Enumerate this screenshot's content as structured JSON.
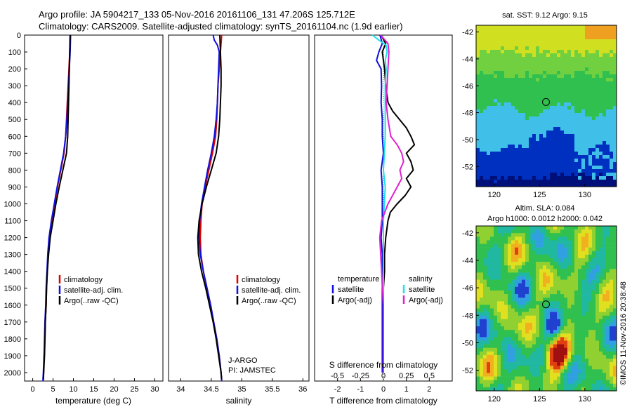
{
  "header": {
    "line1": "Argo profile: JA 5904217_133 05-Nov-2016 20161106_131 47.206S 125.712E",
    "line2": "Climatology: CARS2009. Satellite-adjusted climatology: synTS_20161104.nc (1.9d earlier)"
  },
  "panels": {
    "temperature": {
      "xlabel": "temperature (deg C)",
      "xticks": [
        0,
        5,
        10,
        15,
        20,
        25,
        30
      ],
      "xlim": [
        -2,
        32
      ],
      "legend": [
        "climatology",
        "satellite-adj. clim.",
        "Argo(..raw -QC)"
      ]
    },
    "salinity": {
      "xlabel": "salinity",
      "xticks": [
        34,
        34.5,
        35,
        35.5,
        36
      ],
      "xtick_labels": [
        "34",
        "34.5",
        "35",
        "35.5",
        "36"
      ],
      "xlim": [
        33.8,
        36.1
      ],
      "legend": [
        "climatology",
        "satellite-adj. clim.",
        "Argo(..raw -QC)"
      ],
      "note1": "J-ARGO",
      "note2": "PI: JAMSTEC"
    },
    "difference": {
      "xlabel": "T difference from climatology",
      "top_label": "S difference from climatology",
      "xticks": [
        -2,
        -1,
        0,
        1,
        2
      ],
      "xtick_labels": [
        "-2",
        "-1",
        "0",
        "1",
        "2"
      ],
      "top_ticks": [
        -0.5,
        -0.25,
        0,
        0.25,
        0.5
      ],
      "top_tick_labels": [
        "-0.5",
        "-0.25",
        "0",
        "0.25",
        "0.5"
      ],
      "xlim": [
        -3,
        3
      ],
      "legend_t_head": "temperature",
      "legend_s_head": "salinity",
      "legend_t": [
        "satellite",
        "Argo(-adj)"
      ],
      "legend_s": [
        "satellite",
        "Argo(-adj)"
      ]
    }
  },
  "depth_axis": {
    "ylim": [
      0,
      2050
    ],
    "ticks": [
      0,
      100,
      200,
      300,
      400,
      500,
      600,
      700,
      800,
      900,
      1000,
      1100,
      1200,
      1300,
      1400,
      1500,
      1600,
      1700,
      1800,
      1900,
      2000
    ]
  },
  "maps": {
    "sst": {
      "title": "sat. SST: 9.12 Argo: 9.15",
      "xticks": [
        120,
        125,
        130
      ],
      "yticks": [
        -42,
        -44,
        -46,
        -48,
        -50,
        -52
      ],
      "xlim": [
        118,
        133.5
      ],
      "ylim": [
        -53.5,
        -41.5
      ],
      "marker": [
        125.712,
        -47.206
      ]
    },
    "sla": {
      "title1": "Altim. SLA: 0.084",
      "title2": "Argo h1000: 0.0012 h2000: 0.042",
      "xticks": [
        120,
        125,
        130
      ],
      "yticks": [
        -42,
        -44,
        -46,
        -48,
        -50,
        -52
      ],
      "xlim": [
        118,
        133.5
      ],
      "ylim": [
        -53.5,
        -41.5
      ],
      "marker": [
        125.712,
        -47.206
      ]
    }
  },
  "watermark": "©IMOS 11-Nov-2016 20:38:48",
  "colors": {
    "climatology": "#e00000",
    "satellite": "#1010e0",
    "argo": "#000000",
    "sat_salinity": "#20e0e8",
    "argo_salinity": "#e020d0",
    "zero_line": "#00a000"
  },
  "chart_data": [
    {
      "type": "line",
      "title": "",
      "xlabel": "temperature (deg C)",
      "ylabel": "",
      "xlim": [
        -2,
        32
      ],
      "ylim": [
        2050,
        0
      ],
      "series": [
        {
          "name": "climatology",
          "depth": [
            0,
            100,
            200,
            300,
            400,
            500,
            600,
            700,
            800,
            900,
            1000,
            1100,
            1200,
            1300,
            1400,
            1500,
            1600,
            1700,
            1800,
            1900,
            2000,
            2050
          ],
          "values": [
            9.2,
            9.1,
            8.9,
            8.7,
            8.5,
            8.3,
            8.1,
            7.7,
            6.9,
            6.1,
            5.4,
            4.7,
            4.1,
            3.8,
            3.6,
            3.4,
            3.3,
            3.1,
            3.0,
            2.8,
            2.7,
            2.6
          ]
        },
        {
          "name": "satellite-adj. clim.",
          "depth": [
            0,
            100,
            200,
            300,
            400,
            500,
            600,
            700,
            800,
            900,
            1000,
            1100,
            1200,
            1300,
            1400,
            1500,
            1600,
            1700,
            1800,
            1900,
            2000,
            2050
          ],
          "values": [
            9.3,
            9.2,
            9.0,
            8.8,
            8.6,
            8.4,
            8.1,
            7.6,
            6.8,
            6.0,
            5.3,
            4.6,
            4.0,
            3.7,
            3.5,
            3.3,
            3.2,
            3.0,
            2.9,
            2.8,
            2.6,
            2.5
          ]
        },
        {
          "name": "Argo(..raw -QC)",
          "depth": [
            0,
            100,
            200,
            300,
            400,
            500,
            600,
            700,
            800,
            900,
            1000,
            1100,
            1200,
            1300,
            1400,
            1500,
            1600,
            1700,
            1800,
            1900,
            2000,
            2040
          ],
          "values": [
            9.2,
            9.1,
            9.0,
            8.9,
            8.8,
            8.7,
            8.6,
            8.3,
            7.4,
            6.5,
            5.7,
            5.0,
            4.3,
            3.9,
            3.6,
            3.4,
            3.3,
            3.1,
            3.0,
            2.9,
            2.7,
            2.6
          ]
        }
      ]
    },
    {
      "type": "line",
      "title": "",
      "xlabel": "salinity",
      "ylabel": "",
      "xlim": [
        33.8,
        36.1
      ],
      "ylim": [
        2050,
        0
      ],
      "series": [
        {
          "name": "climatology",
          "depth": [
            0,
            50,
            100,
            200,
            300,
            400,
            500,
            600,
            700,
            800,
            900,
            1000,
            1100,
            1200,
            1300,
            1400,
            1500,
            1600,
            1700,
            1800,
            1900,
            2000,
            2050
          ],
          "values": [
            34.67,
            34.66,
            34.65,
            34.63,
            34.61,
            34.6,
            34.59,
            34.57,
            34.52,
            34.46,
            34.4,
            34.35,
            34.33,
            34.32,
            34.33,
            34.37,
            34.43,
            34.49,
            34.54,
            34.59,
            34.63,
            34.66,
            34.67
          ]
        },
        {
          "name": "satellite-adj. clim.",
          "depth": [
            0,
            30,
            60,
            100,
            200,
            300,
            400,
            500,
            600,
            700,
            800,
            900,
            1000,
            1100,
            1200,
            1300,
            1400,
            1500,
            1600,
            1700,
            1800,
            1900,
            2000,
            2050
          ],
          "values": [
            34.53,
            34.55,
            34.6,
            34.63,
            34.62,
            34.61,
            34.6,
            34.58,
            34.55,
            34.5,
            34.44,
            34.39,
            34.34,
            34.31,
            34.3,
            34.32,
            34.37,
            34.43,
            34.49,
            34.54,
            34.59,
            34.63,
            34.66,
            34.67
          ]
        },
        {
          "name": "Argo(..raw -QC)",
          "depth": [
            0,
            100,
            200,
            300,
            400,
            500,
            600,
            700,
            800,
            900,
            1000,
            1100,
            1200,
            1300,
            1400,
            1500,
            1600,
            1700,
            1800,
            1900,
            2000,
            2040
          ],
          "values": [
            34.64,
            34.65,
            34.66,
            34.66,
            34.65,
            34.64,
            34.62,
            34.58,
            34.5,
            34.42,
            34.35,
            34.3,
            34.28,
            34.29,
            34.34,
            34.41,
            34.47,
            34.53,
            34.58,
            34.62,
            34.66,
            34.67
          ]
        }
      ]
    },
    {
      "type": "line",
      "title": "",
      "xlabel": "T difference from climatology",
      "ylabel": "",
      "xlim": [
        -3,
        3
      ],
      "ylim": [
        2050,
        0
      ],
      "series": [
        {
          "name": "temperature satellite",
          "depth": [
            0,
            50,
            100,
            150,
            200,
            300,
            400,
            500,
            600,
            700,
            800,
            900,
            1000,
            1100,
            1200,
            1300,
            1400,
            1500,
            1600,
            1700,
            1800,
            1900,
            2000
          ],
          "values": [
            -0.15,
            -0.05,
            -0.2,
            -0.3,
            -0.1,
            -0.08,
            -0.1,
            -0.05,
            -0.05,
            0,
            -0.1,
            -0.05,
            -0.05,
            -0.05,
            -0.1,
            -0.05,
            -0.05,
            -0.05,
            -0.05,
            -0.05,
            -0.05,
            -0.05,
            -0.05
          ]
        },
        {
          "name": "temperature Argo(-adj)",
          "depth": [
            0,
            50,
            100,
            200,
            300,
            400,
            450,
            500,
            550,
            600,
            650,
            700,
            750,
            800,
            850,
            900,
            950,
            1000,
            1050,
            1100,
            1200,
            1300,
            1400,
            1500,
            1600,
            1700,
            1800,
            1900,
            2000
          ],
          "values": [
            -0.1,
            0.1,
            -0.05,
            0.05,
            0.1,
            0.2,
            0.4,
            0.7,
            1.0,
            1.2,
            1.35,
            1.0,
            1.2,
            1.3,
            1.0,
            1.2,
            0.95,
            0.6,
            0.3,
            0.2,
            0.1,
            0.05,
            0.05,
            0,
            0,
            0,
            0,
            0,
            0
          ]
        },
        {
          "name": "salinity satellite",
          "depth": [
            0,
            30,
            60,
            100,
            150,
            200,
            300,
            400,
            500,
            600,
            700,
            800,
            900,
            1000,
            1100,
            1200,
            1300,
            1400,
            1500,
            1600,
            1700,
            1800,
            1900,
            2000
          ],
          "values": [
            -0.12,
            -0.05,
            0.03,
            0.04,
            0.02,
            0.03,
            0.02,
            0.02,
            0.02,
            0.02,
            0.01,
            0.0,
            0.02,
            0.01,
            0.0,
            0.0,
            0.0,
            0.0,
            0.0,
            0.0,
            0.0,
            0.0,
            0.0,
            0.0
          ]
        },
        {
          "name": "salinity Argo(-adj)",
          "depth": [
            0,
            50,
            100,
            200,
            300,
            400,
            500,
            600,
            650,
            700,
            750,
            800,
            850,
            900,
            950,
            1000,
            1100,
            1200,
            1300,
            1400,
            1500,
            1600,
            1700,
            1800,
            1900,
            2000
          ],
          "values": [
            -0.03,
            0.05,
            0.06,
            0.05,
            0.04,
            0.03,
            0.05,
            0.08,
            0.15,
            0.2,
            0.22,
            0.18,
            0.2,
            0.15,
            0.1,
            0.05,
            -0.02,
            -0.04,
            -0.03,
            -0.02,
            -0.01,
            0.0,
            0.0,
            0.0,
            0.0,
            0.0
          ]
        }
      ]
    },
    {
      "type": "heatmap",
      "title": "sat. SST: 9.12 Argo: 9.15",
      "xlabel": "",
      "ylabel": "",
      "xlim": [
        118,
        133.5
      ],
      "ylim": [
        -53.5,
        -41.5
      ]
    },
    {
      "type": "heatmap",
      "title": "Altim. SLA: 0.084 / Argo h1000: 0.0012 h2000: 0.042",
      "xlabel": "",
      "ylabel": "",
      "xlim": [
        118,
        133.5
      ],
      "ylim": [
        -53.5,
        -41.5
      ]
    }
  ]
}
